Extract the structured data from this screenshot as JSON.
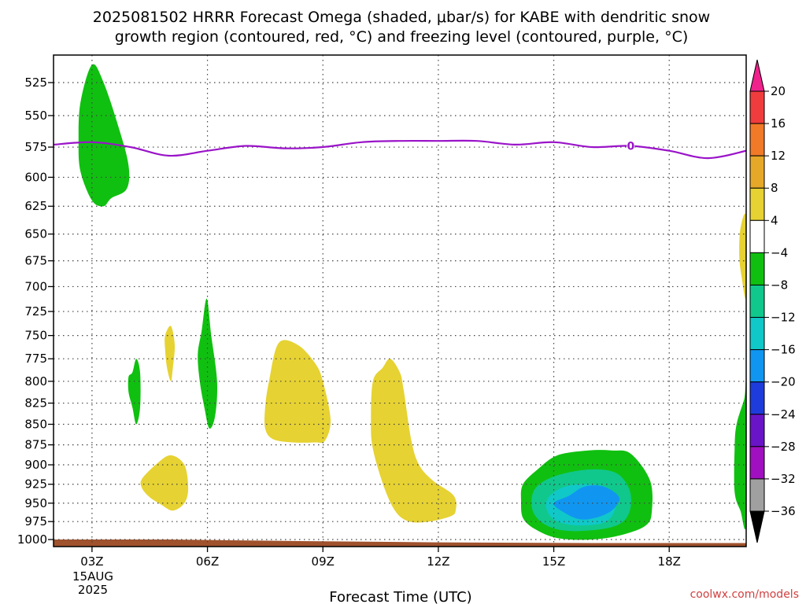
{
  "chart_data": {
    "type": "contour",
    "title_line1": "2025081502 HRRR Forecast Omega (shaded, μbar/s) for KABE with dendritic snow",
    "title_line2": "growth region (contoured, red, °C) and freezing level (contoured, purple, °C)",
    "xlabel": "Forecast Time (UTC)",
    "x_hours": [
      3,
      6,
      9,
      12,
      15,
      18
    ],
    "x_tick_labels": [
      "03Z",
      "06Z",
      "09Z",
      "12Z",
      "15Z",
      "18Z"
    ],
    "x_date_line1": "15AUG",
    "x_date_line2": "2025",
    "xlim_hours": [
      2,
      20
    ],
    "y_levels_hpa": [
      525,
      550,
      575,
      600,
      625,
      650,
      675,
      700,
      725,
      750,
      775,
      800,
      825,
      850,
      875,
      900,
      925,
      950,
      975,
      1000
    ],
    "ylim_hpa": [
      505,
      1010
    ],
    "y_scale": "log-pressure",
    "grid": "dotted",
    "colorbar": {
      "labels": [
        "20",
        "16",
        "12",
        "8",
        "4",
        "−4",
        "−8",
        "−12",
        "−16",
        "−20",
        "−24",
        "−28",
        "−32",
        "−36"
      ],
      "colors": [
        "#f0228c",
        "#f03c3c",
        "#f07a28",
        "#e6a828",
        "#e6d232",
        "#ffffff",
        "#10c010",
        "#10c88c",
        "#10c8c8",
        "#1096f0",
        "#1e3cdc",
        "#6a14c8",
        "#a010c0",
        "#a0a0a0",
        "#000000"
      ]
    },
    "freezing_level": {
      "label": "0",
      "color": "#9a14c8",
      "hours": [
        2,
        3,
        4,
        5,
        6,
        7,
        8,
        9,
        10,
        11,
        12,
        13,
        14,
        15,
        16,
        17,
        18,
        19,
        20
      ],
      "pressure_hpa": [
        573,
        571,
        575,
        582,
        578,
        574,
        576,
        575,
        571,
        570,
        570,
        570,
        573,
        571,
        575,
        574,
        578,
        584,
        578
      ]
    },
    "shaded_regions": [
      {
        "value": -6,
        "color": "#10c010",
        "hours": [
          2.7,
          3.0,
          3.3,
          3.7,
          3.95,
          3.9,
          3.5,
          3.3,
          3.0,
          2.7,
          2.65
        ],
        "pressure_hpa": [
          540,
          512,
          525,
          560,
          590,
          610,
          618,
          625,
          620,
          595,
          570
        ]
      },
      {
        "value": 6,
        "color": "#e6d232",
        "hours": [
          19.85,
          20.0,
          20.0,
          19.88,
          19.82
        ],
        "pressure_hpa": [
          645,
          635,
          710,
          690,
          670
        ]
      },
      {
        "value": -6,
        "color": "#10c010",
        "hours": [
          4.05,
          4.15,
          4.25,
          4.25,
          4.15,
          4.05,
          3.95,
          3.95
        ],
        "pressure_hpa": [
          790,
          775,
          790,
          830,
          850,
          830,
          812,
          795
        ]
      },
      {
        "value": 6,
        "color": "#e6d232",
        "hours": [
          4.9,
          5.05,
          5.15,
          5.1,
          5.05,
          4.95,
          4.9
        ],
        "pressure_hpa": [
          750,
          740,
          760,
          785,
          800,
          785,
          765
        ]
      },
      {
        "value": -6,
        "color": "#10c010",
        "hours": [
          5.85,
          5.98,
          6.1,
          6.25,
          6.2,
          6.05,
          5.92,
          5.8,
          5.75
        ],
        "pressure_hpa": [
          745,
          712,
          750,
          800,
          840,
          855,
          830,
          800,
          770
        ]
      },
      {
        "value": 6,
        "color": "#e6d232",
        "hours": [
          7.6,
          7.85,
          8.35,
          8.8,
          9.0,
          9.2,
          9.05,
          8.8,
          8.2,
          7.7,
          7.5,
          7.5
        ],
        "pressure_hpa": [
          800,
          758,
          760,
          780,
          800,
          845,
          870,
          872,
          872,
          868,
          855,
          830
        ]
      },
      {
        "value": 6,
        "color": "#e6d232",
        "hours": [
          10.3,
          10.55,
          10.75,
          11.0,
          11.1,
          11.3,
          11.5,
          11.85,
          12.4,
          12.45,
          12.3,
          11.75,
          11.25,
          10.9,
          10.6,
          10.3,
          10.25
        ],
        "pressure_hpa": [
          800,
          785,
          775,
          790,
          810,
          870,
          900,
          920,
          940,
          960,
          968,
          975,
          975,
          962,
          930,
          880,
          845
        ]
      },
      {
        "value": 6,
        "color": "#e6d232",
        "hours": [
          4.3,
          4.7,
          5.05,
          5.4,
          5.5,
          5.4,
          5.1,
          4.8,
          4.5,
          4.3
        ],
        "pressure_hpa": [
          918,
          898,
          888,
          900,
          930,
          950,
          960,
          952,
          942,
          930
        ]
      },
      {
        "value": -6,
        "color": "#10c010",
        "hours": [
          14.2,
          14.6,
          15.1,
          15.9,
          16.5,
          17.0,
          17.5,
          17.55,
          17.4,
          16.8,
          16.0,
          15.1,
          14.5,
          14.2,
          14.15
        ],
        "pressure_hpa": [
          925,
          905,
          888,
          882,
          882,
          886,
          920,
          960,
          980,
          993,
          1000,
          998,
          985,
          970,
          948
        ]
      },
      {
        "value": -10,
        "color": "#10c88c",
        "hours": [
          14.5,
          15.0,
          15.9,
          16.6,
          16.95,
          17.0,
          16.8,
          16.3,
          15.4,
          14.8,
          14.45
        ],
        "pressure_hpa": [
          932,
          915,
          906,
          910,
          930,
          955,
          975,
          985,
          988,
          980,
          960
        ]
      },
      {
        "value": -14,
        "color": "#10c8c8",
        "hours": [
          14.9,
          15.3,
          15.9,
          16.4,
          16.6,
          16.5,
          16.2,
          15.5,
          15.0,
          14.8
        ],
        "pressure_hpa": [
          940,
          928,
          925,
          930,
          950,
          968,
          978,
          980,
          972,
          955
        ]
      },
      {
        "value": -18,
        "color": "#1096f0",
        "hours": [
          15.0,
          15.4,
          15.8,
          16.3,
          16.7,
          16.55,
          16.2,
          15.7,
          15.25
        ],
        "pressure_hpa": [
          950,
          940,
          928,
          928,
          942,
          958,
          968,
          972,
          962
        ]
      },
      {
        "value": -6,
        "color": "#10c010",
        "hours": [
          19.75,
          19.95,
          20.0,
          20.0,
          19.85,
          19.7,
          19.7
        ],
        "pressure_hpa": [
          850,
          820,
          805,
          975,
          960,
          935,
          880
        ]
      }
    ],
    "surface": {
      "color": "#a0522d",
      "hours": [
        2,
        5,
        8,
        12,
        16,
        20
      ],
      "pressure_hpa": [
        1000,
        1000,
        1002,
        1004,
        1005,
        1005
      ]
    }
  },
  "credit": "coolwx.com/models"
}
